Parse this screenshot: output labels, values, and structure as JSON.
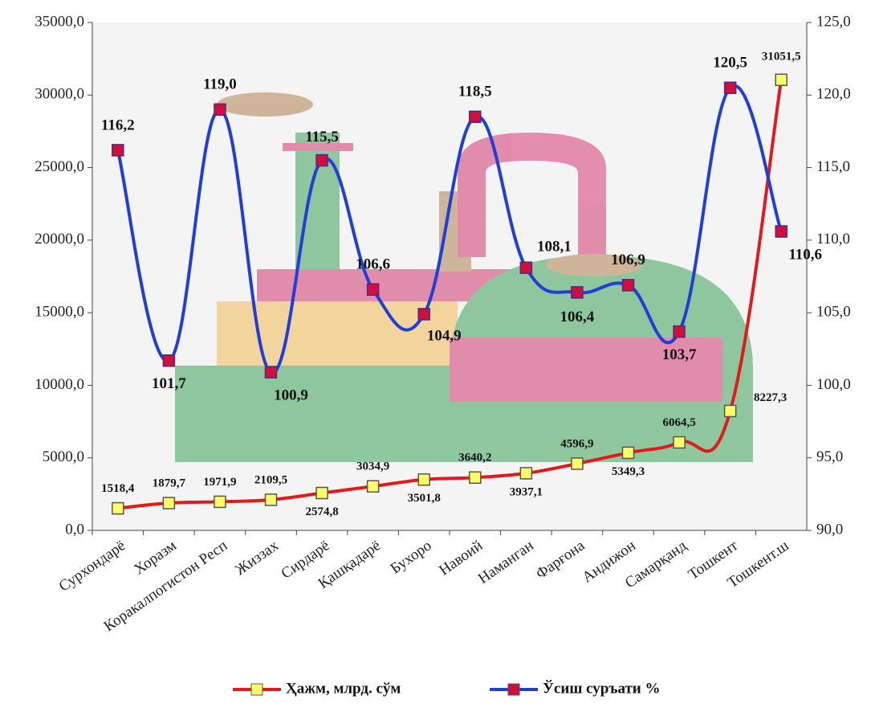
{
  "chart_data": {
    "type": "line",
    "categories": [
      "Сурхондарё",
      "Хоразм",
      "Коракалпогистон Респ",
      "Жиззах",
      "Сирдарё",
      "Қашқадарё",
      "Бухоро",
      "Навоий",
      "Наманган",
      "Фарғона",
      "Андижон",
      "Самарқанд",
      "Тошкент",
      "Тошкент.ш"
    ],
    "series": [
      {
        "name": "Ҳажм, млрд. сўм",
        "color": "#e31a1c",
        "marker_color": "#ffff66",
        "values": [
          1518.4,
          1879.7,
          1971.9,
          2109.5,
          2574.8,
          3034.9,
          3501.8,
          3640.2,
          3937.1,
          4596.9,
          5349.3,
          6064.5,
          8227.3,
          31051.5
        ],
        "value_labels": [
          "1518,4",
          "1879,7",
          "1971,9",
          "2109,5",
          "2574,8",
          "3034,9",
          "3501,8",
          "3640,2",
          "3937,1",
          "4596,9",
          "5349,3",
          "6064,5",
          "8227,3",
          "31051,5"
        ]
      },
      {
        "name": "Ўсиш суръати %",
        "color": "#1f3fd6",
        "marker_color": "#d0103a",
        "axis": "y2",
        "values": [
          116.2,
          101.7,
          119.0,
          100.9,
          115.5,
          106.6,
          104.9,
          118.5,
          108.1,
          106.4,
          106.9,
          103.7,
          120.5,
          110.6
        ],
        "value_labels": [
          "116,2",
          "101,7",
          "119,0",
          "100,9",
          "115,5",
          "106,6",
          "104,9",
          "118,5",
          "108,1",
          "106,4",
          "106,9",
          "103,7",
          "120,5",
          "110,6"
        ]
      }
    ],
    "ylim": [
      0,
      35000
    ],
    "yticks": [
      {
        "value": 0,
        "label": "0,0"
      },
      {
        "value": 5000,
        "label": "5000,0"
      },
      {
        "value": 10000,
        "label": "10000,0"
      },
      {
        "value": 15000,
        "label": "15000,0"
      },
      {
        "value": 20000,
        "label": "20000,0"
      },
      {
        "value": 25000,
        "label": "25000,0"
      },
      {
        "value": 30000,
        "label": "30000,0"
      },
      {
        "value": 35000,
        "label": "35000,0"
      }
    ],
    "y2lim": [
      90,
      125
    ],
    "y2ticks": [
      {
        "value": 90,
        "label": "90,0"
      },
      {
        "value": 95,
        "label": "95,0"
      },
      {
        "value": 100,
        "label": "100,0"
      },
      {
        "value": 105,
        "label": "105,0"
      },
      {
        "value": 110,
        "label": "110,0"
      },
      {
        "value": 115,
        "label": "115,0"
      },
      {
        "value": 120,
        "label": "120,0"
      },
      {
        "value": 125,
        "label": "125,0"
      }
    ],
    "legend": "bottom"
  }
}
